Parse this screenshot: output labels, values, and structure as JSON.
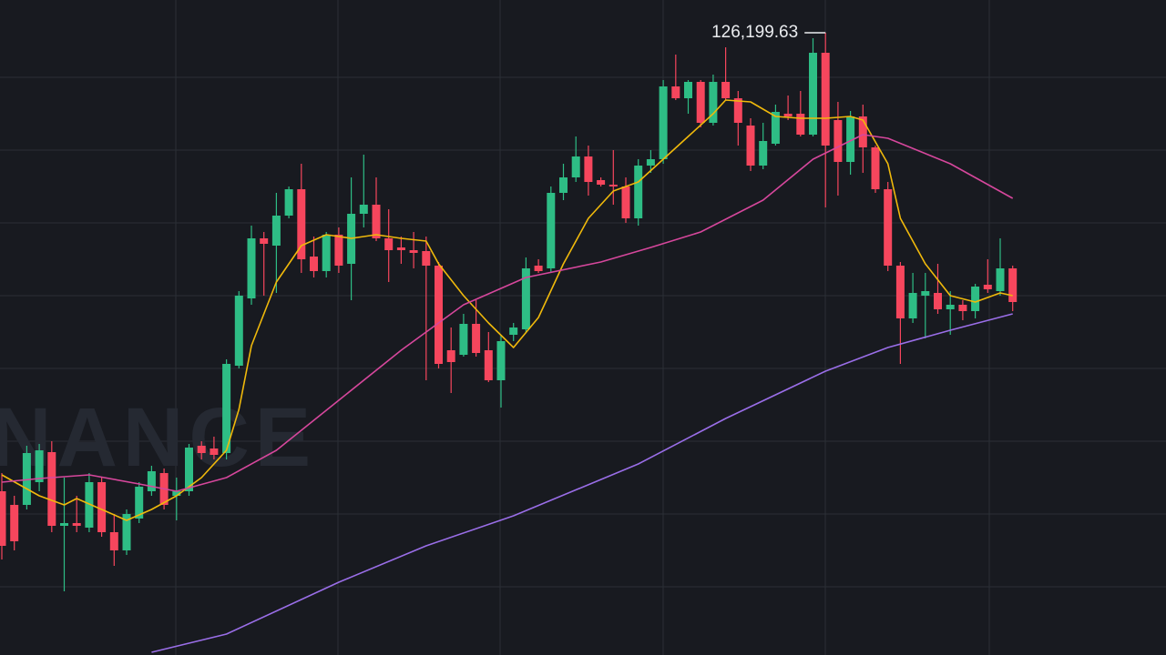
{
  "chart_data": {
    "type": "candlestick",
    "watermark": "NANCE",
    "annotation": {
      "text": "126,199.63",
      "candle": 66
    },
    "ylim": [
      109100,
      127100
    ],
    "up_color": "#2ebd85",
    "down_color": "#f6465d",
    "candles": [
      [
        113600,
        114100,
        111725,
        112100
      ],
      [
        113225,
        113475,
        111975,
        112225
      ],
      [
        113225,
        114850,
        113100,
        114650
      ],
      [
        113850,
        114900,
        113600,
        114725
      ],
      [
        114675,
        114975,
        112475,
        112650
      ],
      [
        112650,
        113975,
        110850,
        112725
      ],
      [
        112725,
        113475,
        112475,
        112650
      ],
      [
        112600,
        114100,
        112475,
        113850
      ],
      [
        113850,
        113975,
        112350,
        112475
      ],
      [
        112475,
        112975,
        111550,
        111975
      ],
      [
        111975,
        113100,
        111850,
        112975
      ],
      [
        112850,
        113850,
        112725,
        113725
      ],
      [
        113600,
        114300,
        113475,
        114150
      ],
      [
        114100,
        114225,
        113100,
        113225
      ],
      [
        113475,
        113975,
        112800,
        113600
      ],
      [
        113600,
        114900,
        113475,
        114800
      ],
      [
        114850,
        114975,
        114475,
        114650
      ],
      [
        114775,
        115100,
        114475,
        114600
      ],
      [
        114650,
        117225,
        114475,
        117100
      ],
      [
        117050,
        119100,
        116975,
        118975
      ],
      [
        118900,
        120900,
        118725,
        120550
      ],
      [
        120550,
        120725,
        118975,
        120400
      ],
      [
        120350,
        121800,
        119050,
        121175
      ],
      [
        121175,
        121975,
        121100,
        121900
      ],
      [
        121900,
        122600,
        119600,
        119975
      ],
      [
        120050,
        120600,
        119475,
        119650
      ],
      [
        119650,
        120725,
        119475,
        120650
      ],
      [
        120650,
        120850,
        119600,
        119800
      ],
      [
        119850,
        122225,
        118850,
        121225
      ],
      [
        121225,
        122850,
        120850,
        121475
      ],
      [
        121475,
        122225,
        120475,
        120550
      ],
      [
        120550,
        121350,
        119350,
        120225
      ],
      [
        120300,
        120600,
        119850,
        120225
      ],
      [
        120225,
        120725,
        119725,
        120150
      ],
      [
        120200,
        120600,
        116650,
        119800
      ],
      [
        119800,
        119900,
        116975,
        117100
      ],
      [
        117475,
        118100,
        116300,
        117150
      ],
      [
        117350,
        118475,
        117300,
        118200
      ],
      [
        118200,
        118850,
        117300,
        117400
      ],
      [
        117475,
        117975,
        116600,
        116650
      ],
      [
        116650,
        117900,
        115900,
        117725
      ],
      [
        117900,
        118225,
        117725,
        118100
      ],
      [
        118050,
        120025,
        117975,
        119725
      ],
      [
        119800,
        119975,
        119600,
        119650
      ],
      [
        119725,
        121975,
        119600,
        121800
      ],
      [
        121800,
        122600,
        121600,
        122225
      ],
      [
        122225,
        123350,
        122100,
        122800
      ],
      [
        122800,
        123100,
        121725,
        122100
      ],
      [
        122150,
        122225,
        121975,
        122025
      ],
      [
        122025,
        122975,
        121475,
        121975
      ],
      [
        121975,
        122225,
        120975,
        121100
      ],
      [
        121100,
        122725,
        120900,
        122550
      ],
      [
        122550,
        122975,
        122350,
        122725
      ],
      [
        122725,
        124900,
        122600,
        124725
      ],
      [
        124725,
        125600,
        124350,
        124400
      ],
      [
        124400,
        124900,
        123975,
        124850
      ],
      [
        124850,
        124900,
        123600,
        123725
      ],
      [
        123725,
        125050,
        123650,
        124850
      ],
      [
        124850,
        125800,
        124350,
        124400
      ],
      [
        124400,
        124600,
        123100,
        123725
      ],
      [
        123650,
        123850,
        122400,
        122550
      ],
      [
        122550,
        123725,
        122450,
        123225
      ],
      [
        123150,
        124225,
        123100,
        124025
      ],
      [
        123975,
        124475,
        123800,
        123900
      ],
      [
        123975,
        124600,
        123350,
        123400
      ],
      [
        123400,
        126050,
        123350,
        125650
      ],
      [
        125650,
        126199.63,
        121400,
        123100
      ],
      [
        123800,
        124300,
        121725,
        122650
      ],
      [
        122650,
        124050,
        122300,
        123900
      ],
      [
        123900,
        124225,
        122350,
        123050
      ],
      [
        123050,
        123100,
        121800,
        121900
      ],
      [
        121900,
        122100,
        119650,
        119800
      ],
      [
        119800,
        119900,
        117100,
        118350
      ],
      [
        118350,
        119600,
        118225,
        119050
      ],
      [
        118975,
        119600,
        117800,
        119100
      ],
      [
        119050,
        119850,
        118475,
        118600
      ],
      [
        118600,
        119100,
        117900,
        118725
      ],
      [
        118725,
        118850,
        118300,
        118550
      ],
      [
        118550,
        119300,
        118350,
        119225
      ],
      [
        119275,
        119975,
        119050,
        119150
      ],
      [
        119100,
        120550,
        118975,
        119725
      ],
      [
        119725,
        119800,
        118550,
        118800
      ]
    ],
    "lines": [
      {
        "color": "#f0b90b",
        "x": [
          0,
          3,
          5,
          6,
          8,
          10,
          12,
          14,
          16,
          18,
          19,
          20,
          22,
          24,
          26,
          28,
          30,
          32,
          34,
          35,
          37,
          39,
          41,
          43,
          45,
          47,
          49,
          51,
          53,
          55,
          57,
          58,
          60,
          62,
          64,
          66,
          68,
          69,
          71,
          72,
          74,
          76,
          78,
          80,
          81
        ],
        "values": [
          114050,
          113475,
          113225,
          113400,
          113100,
          112800,
          113100,
          113475,
          113975,
          114725,
          115850,
          117600,
          119350,
          120350,
          120650,
          120550,
          120650,
          120550,
          120475,
          119850,
          118975,
          118225,
          117550,
          118375,
          119850,
          121100,
          121850,
          122100,
          122725,
          123350,
          123975,
          124350,
          124300,
          123900,
          123850,
          123850,
          123900,
          123800,
          122600,
          121100,
          119850,
          118975,
          118800,
          119050,
          118975
        ]
      },
      {
        "color": "#d6479c",
        "x": [
          0,
          3,
          7,
          11,
          14,
          18,
          22,
          27,
          32,
          37,
          42,
          48,
          52,
          56,
          61,
          65,
          69,
          71,
          76,
          81
        ],
        "values": [
          113850,
          113950,
          114050,
          113800,
          113600,
          113975,
          114725,
          116100,
          117475,
          118725,
          119475,
          119900,
          120300,
          120725,
          121600,
          122725,
          123400,
          123300,
          122600,
          121650
        ]
      },
      {
        "color": "#9a6ee8",
        "x": [
          12,
          18,
          27,
          34,
          41,
          51,
          58,
          66,
          71,
          76,
          81
        ],
        "values": [
          109175,
          109675,
          111100,
          112100,
          112925,
          114350,
          115600,
          116900,
          117550,
          118025,
          118475
        ]
      }
    ]
  }
}
